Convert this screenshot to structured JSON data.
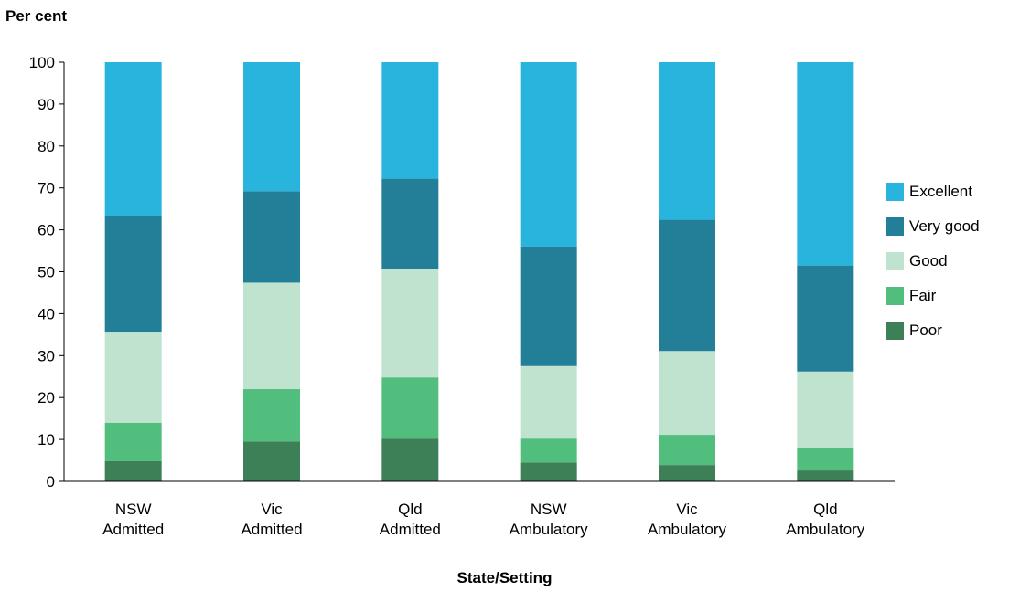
{
  "chart_data": {
    "type": "bar",
    "stacked": true,
    "ylabel": "Per cent",
    "xlabel": "State/Setting",
    "ylim": [
      0,
      100
    ],
    "yticks": [
      0,
      10,
      20,
      30,
      40,
      50,
      60,
      70,
      80,
      90,
      100
    ],
    "categories": [
      [
        "NSW",
        "Admitted"
      ],
      [
        "Vic",
        "Admitted"
      ],
      [
        "Qld",
        "Admitted"
      ],
      [
        "NSW",
        "Ambulatory"
      ],
      [
        "Vic",
        "Ambulatory"
      ],
      [
        "Qld",
        "Ambulatory"
      ]
    ],
    "series": [
      {
        "name": "Poor",
        "color": "#3d7f57",
        "values": [
          4.8,
          9.5,
          10.2,
          4.5,
          3.9,
          2.6
        ]
      },
      {
        "name": "Fair",
        "color": "#52be7d",
        "values": [
          9.2,
          12.5,
          14.6,
          5.7,
          7.2,
          5.5
        ]
      },
      {
        "name": "Good",
        "color": "#bfe3cf",
        "values": [
          21.5,
          25.4,
          25.8,
          17.3,
          20.0,
          18.1
        ]
      },
      {
        "name": "Very good",
        "color": "#237e98",
        "values": [
          27.8,
          21.8,
          21.6,
          28.5,
          31.3,
          25.3
        ]
      },
      {
        "name": "Excellent",
        "color": "#29b4de",
        "values": [
          36.7,
          30.8,
          27.8,
          44.0,
          37.6,
          48.5
        ]
      }
    ],
    "legend_position": "right",
    "grid": false
  }
}
